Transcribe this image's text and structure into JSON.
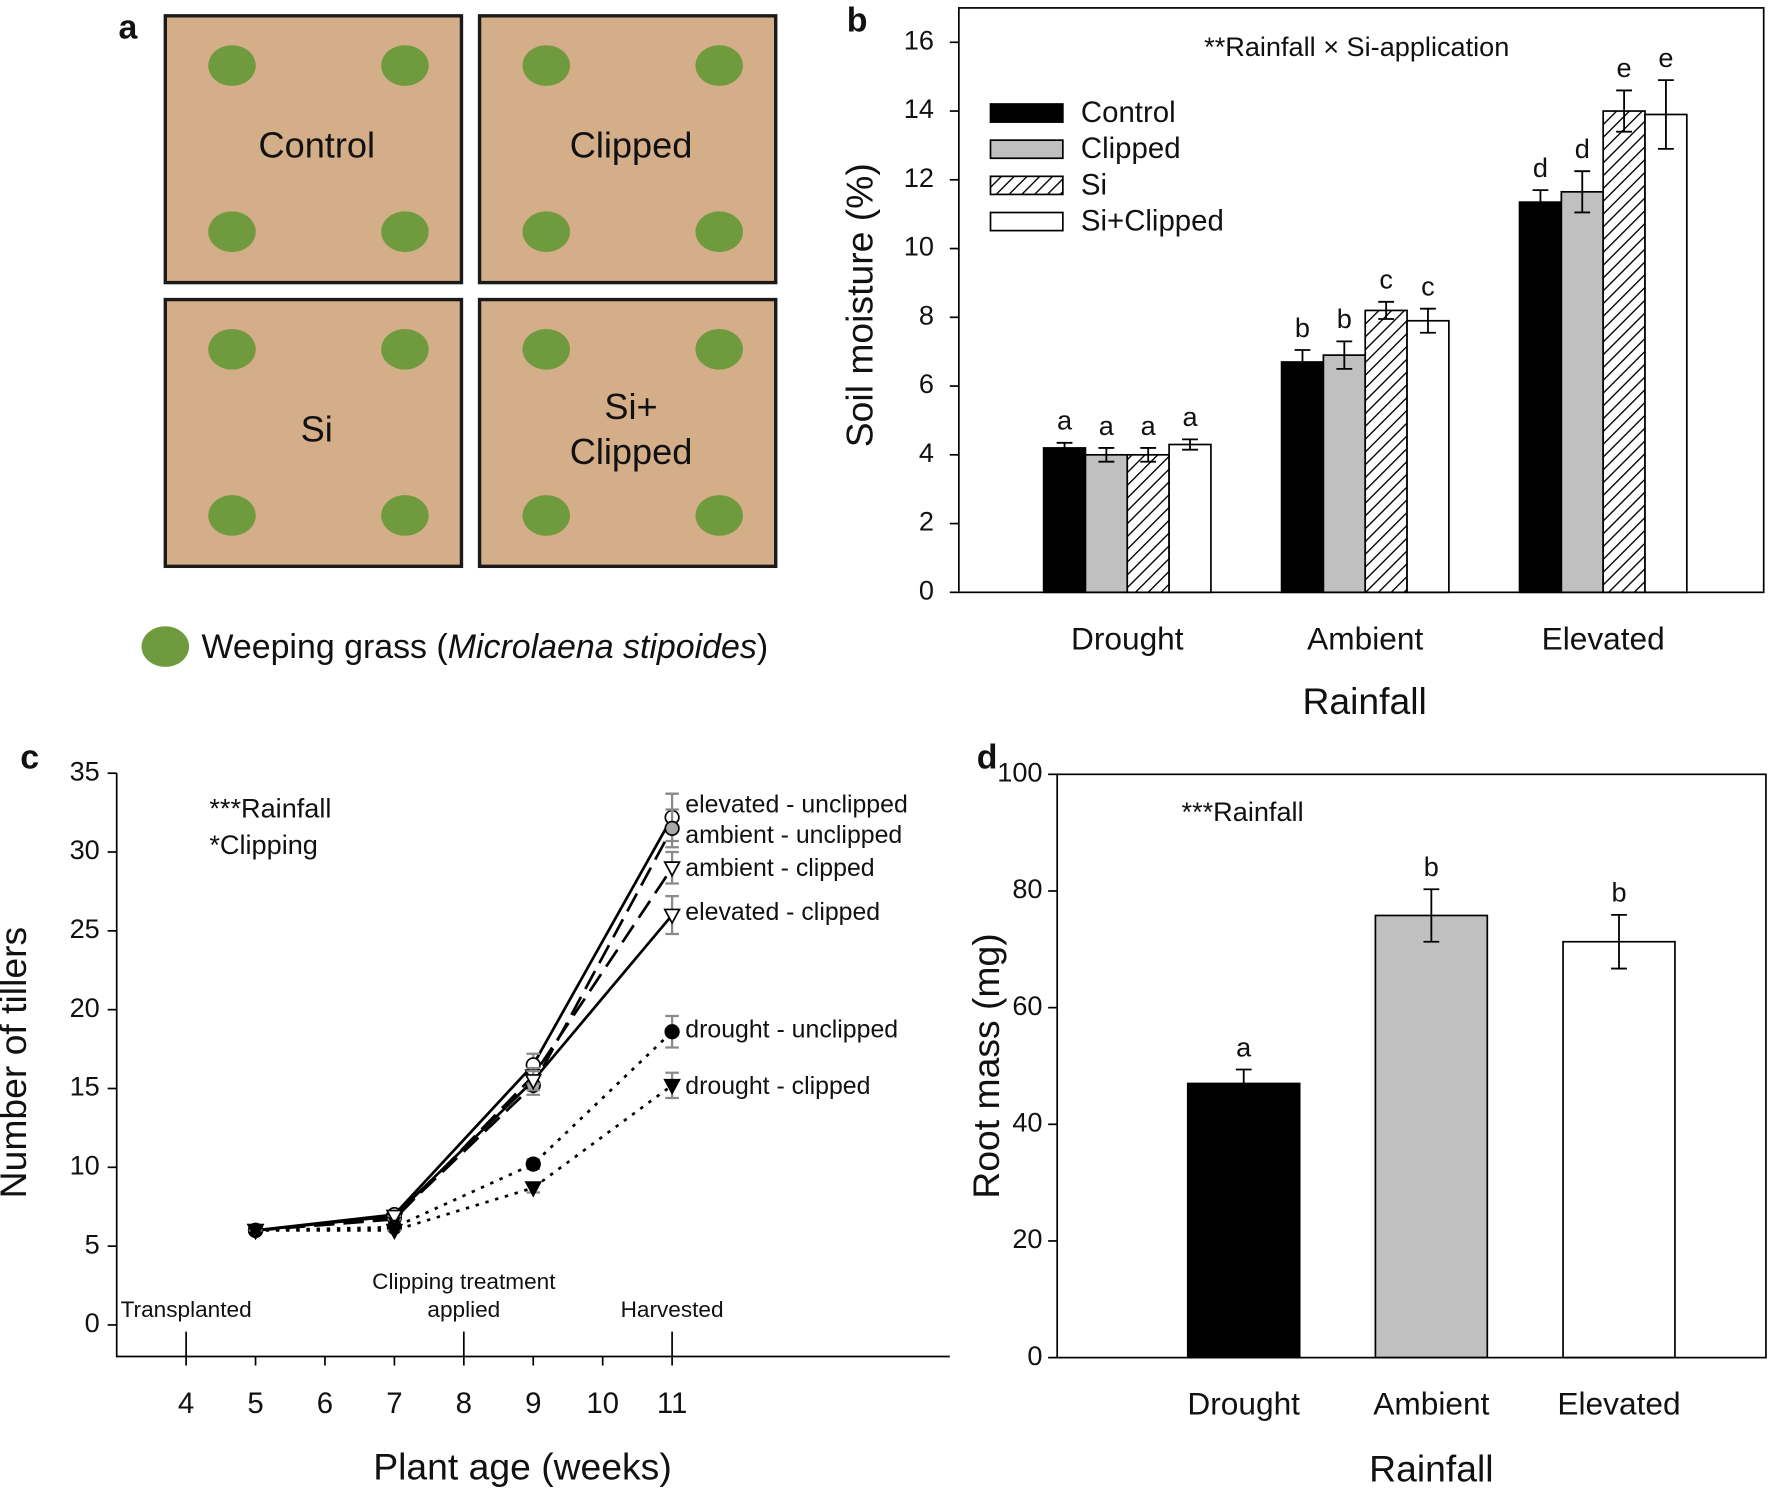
{
  "diagram": {
    "panel_label": "a",
    "plots": [
      [
        "Control"
      ],
      [
        "Clipped"
      ],
      [
        "Si"
      ],
      [
        "Si+",
        "Clipped"
      ]
    ],
    "legend": [
      "Weeping grass (",
      "Microlaena stipoides",
      ")"
    ]
  },
  "chart_data": [
    {
      "type": "bar",
      "panel_label": "b",
      "annotations": [
        "**Rainfall × Si-application"
      ],
      "x_label": "Rainfall",
      "y_label": "Soil moisture (%)",
      "categories": [
        "Drought",
        "Ambient",
        "Elevated"
      ],
      "series": [
        {
          "name": "Control",
          "color": "#000000",
          "values": [
            4.2,
            6.7,
            11.35
          ],
          "errors": [
            0.15,
            0.35,
            0.35
          ],
          "letters": [
            "a",
            "b",
            "d"
          ]
        },
        {
          "name": "Clipped",
          "color": "#c0c0c0",
          "values": [
            4.0,
            6.9,
            11.65
          ],
          "errors": [
            0.2,
            0.4,
            0.6
          ],
          "letters": [
            "a",
            "b",
            "d"
          ]
        },
        {
          "name": "Si",
          "color": "#ffffff",
          "hatch": true,
          "values": [
            4.0,
            8.2,
            14.0
          ],
          "errors": [
            0.2,
            0.25,
            0.6
          ],
          "letters": [
            "a",
            "c",
            "e"
          ]
        },
        {
          "name": "Si+Clipped",
          "color": "#ffffff",
          "values": [
            4.3,
            7.9,
            13.9
          ],
          "errors": [
            0.15,
            0.35,
            1.0
          ],
          "letters": [
            "a",
            "c",
            "e"
          ]
        }
      ],
      "ylim": [
        0,
        17
      ],
      "yticks": [
        0,
        2,
        4,
        6,
        8,
        10,
        12,
        14,
        16
      ],
      "legend": "upper left",
      "frame": true
    },
    {
      "type": "line",
      "panel_label": "c",
      "annotations": [
        "***Rainfall",
        "*Clipping"
      ],
      "x_label": "Plant age (weeks)",
      "y_label": "Number of tillers",
      "x": [
        5,
        7,
        9,
        11
      ],
      "events": [
        {
          "x": 4,
          "label": [
            "Transplanted"
          ]
        },
        {
          "x": 8,
          "label": [
            "Clipping treatment",
            "applied"
          ]
        },
        {
          "x": 11,
          "label": [
            "Harvested"
          ]
        }
      ],
      "series": [
        {
          "name": "elevated - unclipped",
          "color": "#000000",
          "marker": "circle",
          "fill": "#ffffff",
          "linestyle": "solid",
          "values": [
            6,
            7.0,
            16.5,
            32.2
          ],
          "errors": [
            0,
            0,
            0.7,
            1.5
          ]
        },
        {
          "name": "ambient - unclipped",
          "color": "#000000",
          "marker": "circle",
          "fill": "#a8a8a8",
          "linestyle": "dashed",
          "values": [
            6,
            6.8,
            15.2,
            31.5
          ],
          "errors": [
            0,
            0,
            0.6,
            1.2
          ]
        },
        {
          "name": "ambient - clipped",
          "color": "#000000",
          "marker": "triangle-down",
          "fill": "#ffffff",
          "linestyle": "dashed",
          "values": [
            6,
            6.7,
            15.8,
            29.0
          ],
          "errors": [
            0,
            0,
            0.5,
            1.0
          ]
        },
        {
          "name": "elevated - clipped",
          "color": "#000000",
          "marker": "triangle-down",
          "fill": "#ffffff",
          "linestyle": "solid",
          "values": [
            6,
            6.9,
            15.5,
            26.0
          ],
          "errors": [
            0,
            0,
            0.6,
            1.2
          ]
        },
        {
          "name": "drought - unclipped",
          "color": "#000000",
          "marker": "circle",
          "fill": "#000000",
          "linestyle": "dotted",
          "values": [
            6,
            6.2,
            10.2,
            18.6
          ],
          "errors": [
            0,
            0,
            0.3,
            1.0
          ]
        },
        {
          "name": "drought - clipped",
          "color": "#000000",
          "marker": "triangle-down",
          "fill": "#000000",
          "linestyle": "dotted",
          "values": [
            6,
            6.0,
            8.7,
            15.2
          ],
          "errors": [
            0,
            0,
            0.3,
            0.8
          ]
        }
      ],
      "error_color": "#8a8a8a",
      "xlim": [
        3,
        15
      ],
      "xticks": [
        4,
        5,
        6,
        7,
        8,
        9,
        10,
        11
      ],
      "ylim": [
        -2,
        35
      ],
      "yticks": [
        0,
        5,
        10,
        15,
        20,
        25,
        30,
        35
      ],
      "frame": false
    },
    {
      "type": "bar",
      "panel_label": "d",
      "annotations": [
        "***Rainfall"
      ],
      "x_label": "Rainfall",
      "y_label": "Root mass (mg)",
      "categories": [
        "Drought",
        "Ambient",
        "Elevated"
      ],
      "values": [
        47,
        75.8,
        71.3
      ],
      "errors": [
        2.4,
        4.5,
        4.6
      ],
      "letters": [
        "a",
        "b",
        "b"
      ],
      "colors": [
        "#000000",
        "#c0c0c0",
        "#ffffff"
      ],
      "ylim": [
        0,
        100
      ],
      "yticks": [
        0,
        20,
        40,
        60,
        80,
        100
      ],
      "frame": true
    }
  ]
}
